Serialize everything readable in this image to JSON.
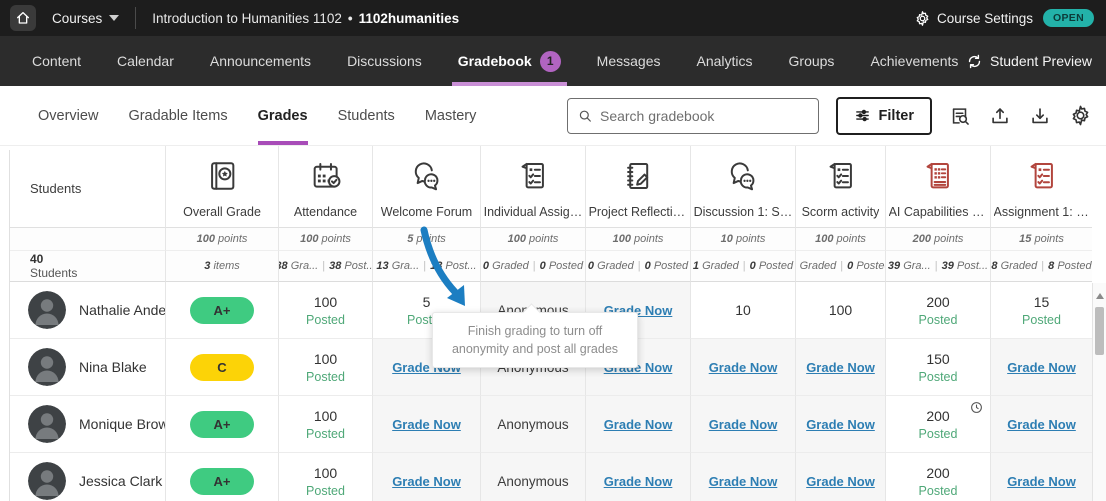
{
  "colors": {
    "accent_badge": "#b164c1",
    "nav_underline": "#c98fd6",
    "subnav_underline": "#a84cb8",
    "open_badge": "#23b2a9",
    "open_text": "#0c3c39",
    "grade_green": "#3fcb81",
    "grade_yellow": "#fcd307",
    "posted_green": "#4fa878",
    "link_blue": "#2d7eb3",
    "arrow_blue": "#1c7ec2",
    "icon_dark": "#3a3a3a",
    "icon_red": "#b2453d"
  },
  "topbar": {
    "courses_label": "Courses",
    "course_title": "Introduction to Humanities 1102",
    "separator": "•",
    "course_code": "1102humanities",
    "course_settings_label": "Course Settings",
    "status_badge": "OPEN"
  },
  "nav": {
    "tabs": [
      {
        "label": "Content",
        "active": false
      },
      {
        "label": "Calendar",
        "active": false
      },
      {
        "label": "Announcements",
        "active": false
      },
      {
        "label": "Discussions",
        "active": false
      },
      {
        "label": "Gradebook",
        "active": true,
        "badge": "1"
      },
      {
        "label": "Messages",
        "active": false
      },
      {
        "label": "Analytics",
        "active": false
      },
      {
        "label": "Groups",
        "active": false
      },
      {
        "label": "Achievements",
        "active": false
      }
    ],
    "student_preview_label": "Student Preview"
  },
  "subnav": {
    "tabs": [
      {
        "label": "Overview",
        "active": false
      },
      {
        "label": "Gradable Items",
        "active": false
      },
      {
        "label": "Grades",
        "active": true
      },
      {
        "label": "Students",
        "active": false
      },
      {
        "label": "Mastery",
        "active": false
      }
    ],
    "search_placeholder": "Search gradebook",
    "filter_label": "Filter"
  },
  "gradebook": {
    "students_header": "Students",
    "students_count": "40 Students",
    "grade_now_label": "Grade Now",
    "anonymous_label": "Anonymous",
    "posted_label": "Posted",
    "tooltip": "Finish grading to turn off anonymity and post all grades",
    "columns": [
      {
        "label": "Overall Grade",
        "icon": "grade",
        "color": "dark",
        "points": "100 points",
        "stat_single": "3 items"
      },
      {
        "label": "Attendance",
        "icon": "calendar",
        "color": "dark",
        "points": "100 points",
        "graded": "38 Gra...",
        "posted": "38 Post..."
      },
      {
        "label": "Welcome Forum",
        "icon": "discussion",
        "color": "dark",
        "points": "5 points",
        "graded": "13 Gra...",
        "posted": "13 Post..."
      },
      {
        "label": "Individual Assignm...",
        "icon": "checklist",
        "color": "dark",
        "points": "100 points",
        "graded": "0 Graded",
        "posted": "0 Posted"
      },
      {
        "label": "Project Reflections",
        "icon": "notebook",
        "color": "dark",
        "points": "100 points",
        "graded": "0 Graded",
        "posted": "0 Posted"
      },
      {
        "label": "Discussion 1: Softw...",
        "icon": "discussion",
        "color": "dark",
        "points": "10 points",
        "graded": "1 Graded",
        "posted": "0 Posted"
      },
      {
        "label": "Scorm activity",
        "icon": "checklist",
        "color": "dark",
        "points": "100 points",
        "graded": "1 Graded",
        "posted": "0 Posted"
      },
      {
        "label": "AI Capabilities - Ind...",
        "icon": "ailist",
        "color": "red",
        "points": "200 points",
        "graded": "39 Gra...",
        "posted": "39 Post..."
      },
      {
        "label": "Assignment 1: Inve..",
        "icon": "checklist",
        "color": "red",
        "points": "15 points",
        "graded": "8 Graded",
        "posted": "8 Posted"
      }
    ],
    "rows": [
      {
        "name": "Nathalie Andersson",
        "grade": "A+",
        "grade_color": "green",
        "cells": [
          {
            "type": "posted",
            "value": "100"
          },
          {
            "type": "posted",
            "value": "5"
          },
          {
            "type": "anon"
          },
          {
            "type": "link"
          },
          {
            "type": "plain",
            "value": "10"
          },
          {
            "type": "plain",
            "value": "100"
          },
          {
            "type": "posted",
            "value": "200"
          },
          {
            "type": "posted",
            "value": "15"
          }
        ]
      },
      {
        "name": "Nina Blake",
        "grade": "C",
        "grade_color": "yellow",
        "cells": [
          {
            "type": "posted",
            "value": "100"
          },
          {
            "type": "link"
          },
          {
            "type": "anon"
          },
          {
            "type": "link"
          },
          {
            "type": "link"
          },
          {
            "type": "link"
          },
          {
            "type": "posted",
            "value": "150"
          },
          {
            "type": "link"
          }
        ]
      },
      {
        "name": "Monique Brown",
        "grade": "A+",
        "grade_color": "green",
        "cells": [
          {
            "type": "posted",
            "value": "100"
          },
          {
            "type": "link"
          },
          {
            "type": "anon"
          },
          {
            "type": "link"
          },
          {
            "type": "link"
          },
          {
            "type": "link"
          },
          {
            "type": "posted",
            "value": "200",
            "clock": true
          },
          {
            "type": "link"
          }
        ]
      },
      {
        "name": "Jessica Clark",
        "grade": "A+",
        "grade_color": "green",
        "cells": [
          {
            "type": "posted",
            "value": "100"
          },
          {
            "type": "link"
          },
          {
            "type": "anon"
          },
          {
            "type": "link"
          },
          {
            "type": "link"
          },
          {
            "type": "link"
          },
          {
            "type": "posted",
            "value": "200"
          },
          {
            "type": "link"
          }
        ]
      }
    ]
  }
}
